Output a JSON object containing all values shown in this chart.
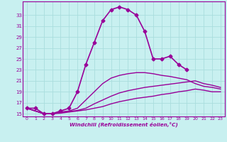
{
  "xlabel": "Windchill (Refroidissement éolien,°C)",
  "background_color": "#c8f0f0",
  "line_color": "#990099",
  "grid_color": "#aadddd",
  "x_hours": [
    0,
    1,
    2,
    3,
    4,
    5,
    6,
    7,
    8,
    9,
    10,
    11,
    12,
    13,
    14,
    15,
    16,
    17,
    18,
    19,
    20,
    21,
    22,
    23
  ],
  "series1": [
    16.0,
    16.0,
    15.0,
    15.0,
    15.5,
    16.0,
    19.0,
    24.0,
    28.0,
    32.0,
    34.0,
    34.5,
    34.0,
    33.0,
    30.0,
    25.0,
    25.0,
    25.5,
    24.0,
    23.0,
    null,
    null,
    null,
    null
  ],
  "series2": [
    16.0,
    15.5,
    15.0,
    15.0,
    15.3,
    15.5,
    16.0,
    17.5,
    19.0,
    20.5,
    21.5,
    22.0,
    22.3,
    22.5,
    22.5,
    22.3,
    22.0,
    21.8,
    21.5,
    21.2,
    20.5,
    20.0,
    19.8,
    19.5
  ],
  "series3": [
    16.0,
    15.5,
    15.0,
    15.0,
    15.2,
    15.4,
    15.6,
    16.0,
    16.8,
    17.5,
    18.2,
    18.8,
    19.2,
    19.5,
    19.8,
    20.0,
    20.2,
    20.4,
    20.6,
    20.8,
    21.0,
    20.5,
    20.2,
    19.8
  ],
  "series4": [
    16.0,
    15.5,
    15.0,
    15.0,
    15.1,
    15.3,
    15.5,
    15.7,
    16.0,
    16.3,
    16.8,
    17.2,
    17.5,
    17.8,
    18.0,
    18.2,
    18.5,
    18.7,
    19.0,
    19.2,
    19.5,
    19.3,
    19.0,
    19.0
  ],
  "ylim_min": 14.5,
  "ylim_max": 35.5,
  "yticks": [
    15,
    17,
    19,
    21,
    23,
    25,
    27,
    29,
    31,
    33
  ],
  "xticks": [
    0,
    1,
    2,
    3,
    4,
    5,
    6,
    7,
    8,
    9,
    10,
    11,
    12,
    13,
    14,
    15,
    16,
    17,
    18,
    19,
    20,
    21,
    22,
    23
  ]
}
